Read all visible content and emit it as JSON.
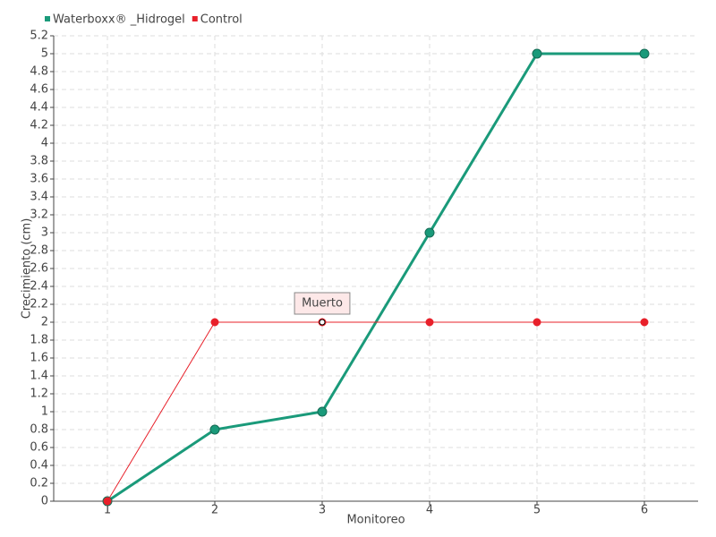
{
  "chart_data": {
    "type": "line",
    "x_label": "Monitoreo",
    "y_label": "Crecimiento (cm)",
    "x": [
      1,
      2,
      3,
      4,
      5,
      6
    ],
    "xlim": [
      0.5,
      6.5
    ],
    "xticks": [
      1,
      2,
      3,
      4,
      5,
      6
    ],
    "ylim": [
      0,
      5.2
    ],
    "yticks": [
      0,
      0.2,
      0.4,
      0.6,
      0.8,
      1,
      1.2,
      1.4,
      1.6,
      1.8,
      2,
      2.2,
      2.4,
      2.6,
      2.8,
      3,
      3.2,
      3.4,
      3.6,
      3.8,
      4,
      4.2,
      4.4,
      4.6,
      4.8,
      5,
      5.2
    ],
    "grid": true,
    "legend": "top-left",
    "series": [
      {
        "name": "Waterboxx® _Hidrogel",
        "color": "#1a9a7a",
        "values": [
          0,
          0.8,
          1,
          3,
          5,
          5
        ]
      },
      {
        "name": "Control",
        "color": "#e8202a",
        "values": [
          0,
          2,
          2,
          2,
          2,
          2
        ]
      }
    ],
    "annotations": [
      {
        "text": "Muerto",
        "x": 3,
        "y": 2
      }
    ]
  }
}
